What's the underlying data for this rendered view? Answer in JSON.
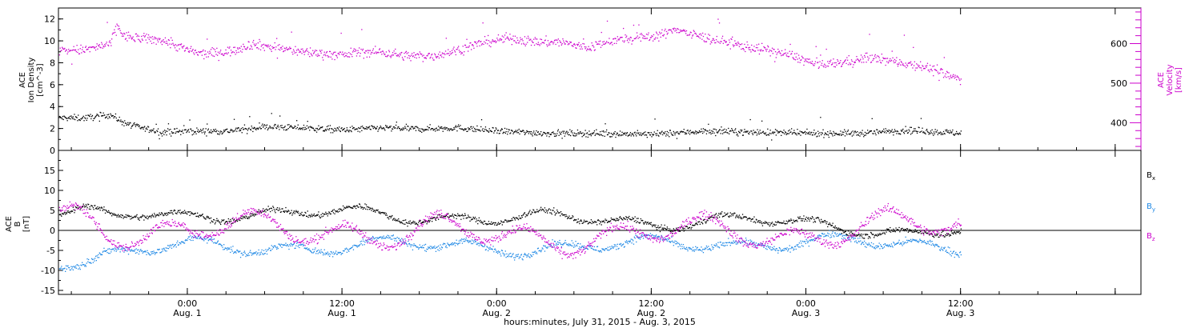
{
  "chart_data": [
    {
      "type": "scatter",
      "panel": "top",
      "left_axis": {
        "label_lines": [
          "ACE",
          "Ion Density",
          "[cm^-3]"
        ],
        "range": [
          0,
          13
        ],
        "ticks": [
          0,
          2,
          4,
          6,
          8,
          10,
          12
        ],
        "color": "#000000"
      },
      "right_axis": {
        "label_lines": [
          "ACE",
          "Velocity",
          "[km/s]"
        ],
        "range": [
          330,
          690
        ],
        "ticks": [
          400,
          500,
          600
        ],
        "color": "#cc00cc"
      },
      "series": [
        {
          "name": "",
          "axis": "left",
          "color": "#000000",
          "anchors": [
            [
              -8.0,
              3.0
            ],
            [
              -6.0,
              3.3
            ],
            [
              -5.0,
              2.6
            ],
            [
              -4.0,
              2.2
            ],
            [
              -2.0,
              1.7
            ],
            [
              0.0,
              1.8
            ],
            [
              3.0,
              1.8
            ],
            [
              6.0,
              2.2
            ],
            [
              9.0,
              2.1
            ],
            [
              12.0,
              1.9
            ],
            [
              15.0,
              2.1
            ],
            [
              18.0,
              2.0
            ],
            [
              21.0,
              2.1
            ],
            [
              24.0,
              1.8
            ],
            [
              28.0,
              1.6
            ],
            [
              32.0,
              1.6
            ],
            [
              36.0,
              1.5
            ],
            [
              40.0,
              1.8
            ],
            [
              44.0,
              1.7
            ],
            [
              48.0,
              1.6
            ],
            [
              52.0,
              1.6
            ],
            [
              56.0,
              1.9
            ],
            [
              60.0,
              1.6
            ]
          ],
          "spread": 0.35
        },
        {
          "name": "",
          "axis": "right",
          "color": "#cc00cc",
          "anchors": [
            [
              -8.0,
              585
            ],
            [
              -6.0,
              600
            ],
            [
              -5.5,
              650
            ],
            [
              -5.0,
              620
            ],
            [
              -4.0,
              615
            ],
            [
              -2.0,
              610
            ],
            [
              0.0,
              585
            ],
            [
              1.0,
              575
            ],
            [
              3.0,
              580
            ],
            [
              5.0,
              600
            ],
            [
              7.0,
              590
            ],
            [
              9.0,
              580
            ],
            [
              11.0,
              575
            ],
            [
              12.0,
              570
            ],
            [
              13.0,
              580
            ],
            [
              15.0,
              580
            ],
            [
              17.0,
              570
            ],
            [
              19.0,
              570
            ],
            [
              21.0,
              585
            ],
            [
              23.0,
              605
            ],
            [
              25.0,
              615
            ],
            [
              27.0,
              605
            ],
            [
              29.0,
              605
            ],
            [
              31.0,
              590
            ],
            [
              33.0,
              610
            ],
            [
              35.0,
              615
            ],
            [
              37.0,
              625
            ],
            [
              38.0,
              640
            ],
            [
              39.0,
              625
            ],
            [
              41.0,
              610
            ],
            [
              43.0,
              595
            ],
            [
              45.0,
              585
            ],
            [
              47.0,
              570
            ],
            [
              49.0,
              545
            ],
            [
              51.0,
              555
            ],
            [
              53.0,
              565
            ],
            [
              55.0,
              555
            ],
            [
              57.0,
              545
            ],
            [
              59.0,
              520
            ],
            [
              60.0,
              510
            ]
          ],
          "spread": 15
        }
      ]
    },
    {
      "type": "scatter",
      "panel": "bottom",
      "left_axis": {
        "label_lines": [
          "ACE",
          "B",
          "[nT]"
        ],
        "range": [
          -16,
          20
        ],
        "ticks": [
          -15,
          -10,
          -5,
          0,
          5,
          10,
          15
        ],
        "color": "#000000"
      },
      "zero_line": true,
      "legend_position": "right",
      "series": [
        {
          "name": "Bx",
          "color": "#000000",
          "anchors": [
            [
              -8.0,
              4.5
            ],
            [
              -6.0,
              3.0
            ],
            [
              -4.0,
              4.0
            ],
            [
              -2.0,
              4.0
            ],
            [
              0.0,
              4.0
            ],
            [
              4.0,
              4.5
            ],
            [
              8.0,
              4.0
            ],
            [
              12.0,
              4.5
            ],
            [
              16.0,
              4.0
            ],
            [
              20.0,
              3.5
            ],
            [
              24.0,
              3.0
            ],
            [
              28.0,
              3.0
            ],
            [
              32.0,
              3.0
            ],
            [
              36.0,
              2.0
            ],
            [
              40.0,
              2.5
            ],
            [
              44.0,
              2.5
            ],
            [
              48.0,
              1.5
            ],
            [
              52.0,
              1.0
            ],
            [
              56.0,
              -0.5
            ],
            [
              60.0,
              0.0
            ]
          ],
          "osc": 1.8,
          "spread": 1.0
        },
        {
          "name": "By",
          "color": "#1e88e5",
          "anchors": [
            [
              -8.0,
              -7.0
            ],
            [
              -6.0,
              -5.5
            ],
            [
              -4.0,
              -4.5
            ],
            [
              0.0,
              -4.0
            ],
            [
              4.0,
              -4.5
            ],
            [
              8.0,
              -4.0
            ],
            [
              12.0,
              -3.5
            ],
            [
              16.0,
              -3.5
            ],
            [
              20.0,
              -4.0
            ],
            [
              24.0,
              -4.0
            ],
            [
              28.0,
              -4.0
            ],
            [
              32.0,
              -4.0
            ],
            [
              36.0,
              -3.5
            ],
            [
              40.0,
              -3.0
            ],
            [
              44.0,
              -3.0
            ],
            [
              48.0,
              -3.0
            ],
            [
              52.0,
              -3.0
            ],
            [
              56.0,
              -3.5
            ],
            [
              60.0,
              -3.5
            ]
          ],
          "osc": 2.0,
          "spread": 1.2
        },
        {
          "name": "Bz",
          "color": "#cc00cc",
          "anchors": [
            [
              -8.0,
              3.0
            ],
            [
              -6.0,
              1.0
            ],
            [
              -4.0,
              0.0
            ],
            [
              0.0,
              0.5
            ],
            [
              4.0,
              0.5
            ],
            [
              8.0,
              0.0
            ],
            [
              12.0,
              0.5
            ],
            [
              16.0,
              -0.5
            ],
            [
              20.0,
              0.0
            ],
            [
              24.0,
              -2.0
            ],
            [
              28.0,
              -1.5
            ],
            [
              32.0,
              -1.0
            ],
            [
              36.0,
              -1.0
            ],
            [
              40.0,
              -0.5
            ],
            [
              44.0,
              0.0
            ],
            [
              48.0,
              -1.0
            ],
            [
              52.0,
              0.5
            ],
            [
              56.0,
              1.0
            ],
            [
              60.0,
              1.0
            ]
          ],
          "osc": 4.0,
          "spread": 1.5
        }
      ]
    }
  ],
  "x_axis": {
    "range": [
      -10.0,
      74.0
    ],
    "data_end": 60.0,
    "tick_values": [
      0,
      12,
      24,
      36,
      48,
      60,
      72
    ],
    "tick_labels": [
      {
        "time": "0:00",
        "date": "Aug. 1"
      },
      {
        "time": "12:00",
        "date": "Aug. 1"
      },
      {
        "time": "0:00",
        "date": "Aug. 2"
      },
      {
        "time": "12:00",
        "date": "Aug. 2"
      },
      {
        "time": "0:00",
        "date": "Aug. 3"
      },
      {
        "time": "12:00",
        "date": "Aug. 3"
      }
    ],
    "label": "hours:minutes, July 31, 2015 - Aug.  3, 2015"
  },
  "legend": {
    "bx_label": "B",
    "bx_sub": "x",
    "by_label": "B",
    "by_sub": "y",
    "bz_label": "B",
    "bz_sub": "z"
  }
}
